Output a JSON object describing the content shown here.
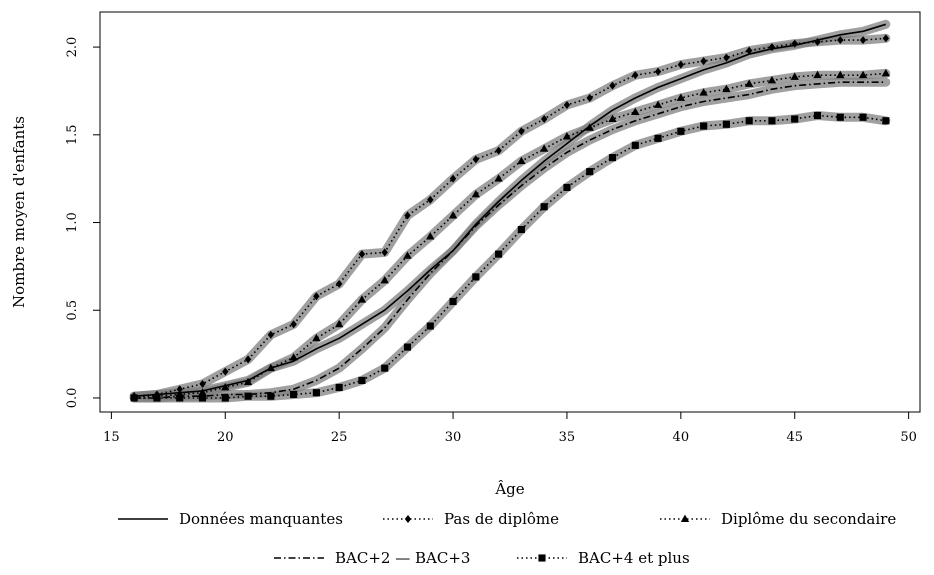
{
  "chart_data": {
    "type": "line",
    "xlabel": "Âge",
    "ylabel": "Nombre moyen d'enfants",
    "xlim": [
      14.5,
      50.5
    ],
    "ylim": [
      -0.08,
      2.2
    ],
    "xticks": [
      15,
      20,
      25,
      30,
      35,
      40,
      45,
      50
    ],
    "yticks": [
      0.0,
      0.5,
      1.0,
      1.5,
      2.0
    ],
    "xtick_labels": [
      "15",
      "20",
      "25",
      "30",
      "35",
      "40",
      "45",
      "50"
    ],
    "ytick_labels": [
      "0.0",
      "0.5",
      "1.0",
      "1.5",
      "2.0"
    ],
    "grid": false,
    "legend_position": "bottom",
    "x": [
      16,
      17,
      18,
      19,
      20,
      21,
      22,
      23,
      24,
      25,
      26,
      27,
      28,
      29,
      30,
      31,
      32,
      33,
      34,
      35,
      36,
      37,
      38,
      39,
      40,
      41,
      42,
      43,
      44,
      45,
      46,
      47,
      48,
      49
    ],
    "series": [
      {
        "name": "Données manquantes",
        "line_style": "solid",
        "marker": "none",
        "values": [
          0.01,
          0.02,
          0.03,
          0.04,
          0.07,
          0.1,
          0.17,
          0.21,
          0.28,
          0.34,
          0.42,
          0.5,
          0.61,
          0.73,
          0.84,
          0.99,
          1.12,
          1.24,
          1.35,
          1.45,
          1.55,
          1.64,
          1.71,
          1.77,
          1.82,
          1.87,
          1.91,
          1.96,
          1.99,
          2.01,
          2.04,
          2.07,
          2.09,
          2.13
        ]
      },
      {
        "name": "Pas de diplôme",
        "line_style": "dotted",
        "marker": "diamond",
        "values": [
          0.01,
          0.02,
          0.05,
          0.08,
          0.15,
          0.22,
          0.36,
          0.42,
          0.58,
          0.65,
          0.82,
          0.83,
          1.04,
          1.13,
          1.25,
          1.36,
          1.41,
          1.52,
          1.59,
          1.67,
          1.71,
          1.78,
          1.84,
          1.86,
          1.9,
          1.92,
          1.94,
          1.98,
          2.0,
          2.02,
          2.03,
          2.04,
          2.04,
          2.05
        ]
      },
      {
        "name": "Diplôme du secondaire",
        "line_style": "dotted",
        "marker": "triangle",
        "values": [
          0.01,
          0.01,
          0.02,
          0.03,
          0.06,
          0.09,
          0.17,
          0.23,
          0.34,
          0.42,
          0.56,
          0.67,
          0.81,
          0.92,
          1.04,
          1.16,
          1.25,
          1.35,
          1.42,
          1.49,
          1.54,
          1.59,
          1.63,
          1.67,
          1.71,
          1.74,
          1.76,
          1.79,
          1.81,
          1.83,
          1.84,
          1.84,
          1.84,
          1.85
        ]
      },
      {
        "name": "BAC+2 — BAC+3",
        "line_style": "dashdot",
        "marker": "none",
        "values": [
          0.0,
          0.0,
          0.01,
          0.01,
          0.02,
          0.02,
          0.03,
          0.05,
          0.1,
          0.17,
          0.28,
          0.4,
          0.56,
          0.71,
          0.84,
          0.98,
          1.1,
          1.21,
          1.31,
          1.4,
          1.47,
          1.53,
          1.58,
          1.62,
          1.66,
          1.69,
          1.71,
          1.73,
          1.76,
          1.78,
          1.79,
          1.8,
          1.8,
          1.8
        ]
      },
      {
        "name": "BAC+4 et plus",
        "line_style": "dotted",
        "marker": "square",
        "values": [
          0.0,
          0.0,
          0.0,
          0.0,
          0.0,
          0.01,
          0.01,
          0.02,
          0.03,
          0.06,
          0.1,
          0.17,
          0.29,
          0.41,
          0.55,
          0.69,
          0.82,
          0.96,
          1.09,
          1.2,
          1.29,
          1.37,
          1.44,
          1.48,
          1.52,
          1.55,
          1.56,
          1.58,
          1.58,
          1.59,
          1.61,
          1.6,
          1.6,
          1.58
        ]
      }
    ],
    "ci_color": "#808080",
    "line_color": "#000000"
  }
}
